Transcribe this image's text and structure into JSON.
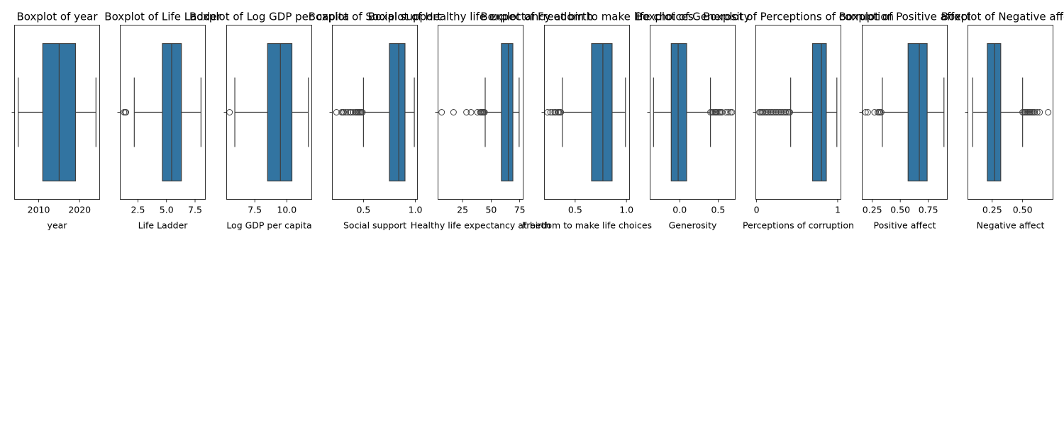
{
  "chart_data": [
    {
      "type": "box",
      "title": "Boxplot of year",
      "xlabel": "year",
      "xlim": [
        2004.1,
        2024.9
      ],
      "ticks": [
        {
          "v": 2010,
          "l": "2010"
        },
        {
          "v": 2020,
          "l": "2020"
        }
      ],
      "stats": {
        "whislo": 2005,
        "q1": 2011,
        "median": 2015,
        "q3": 2019,
        "whishi": 2024
      },
      "outliers": []
    },
    {
      "type": "box",
      "title": "Boxplot of Life Ladder",
      "xlabel": "Life Ladder",
      "xlim": [
        0.95,
        8.4
      ],
      "ticks": [
        {
          "v": 2.5,
          "l": "2.5"
        },
        {
          "v": 5,
          "l": "5.0"
        },
        {
          "v": 7.5,
          "l": "7.5"
        }
      ],
      "stats": {
        "whislo": 2.18,
        "q1": 4.64,
        "median": 5.45,
        "q3": 6.3,
        "whishi": 8.02
      },
      "outliers": [
        1.28,
        1.39,
        1.45
      ]
    },
    {
      "type": "box",
      "title": "Boxplot of Log GDP per capita",
      "xlabel": "Log GDP per capita",
      "xlim": [
        5.3,
        11.95
      ],
      "ticks": [
        {
          "v": 7.5,
          "l": "7.5"
        },
        {
          "v": 10,
          "l": "10.0"
        }
      ],
      "stats": {
        "whislo": 5.94,
        "q1": 8.5,
        "median": 9.5,
        "q3": 10.4,
        "whishi": 11.68
      },
      "outliers": [
        5.53
      ]
    },
    {
      "type": "box",
      "title": "Boxplot of Social support",
      "xlabel": "Social support",
      "xlim": [
        0.2,
        1.02
      ],
      "ticks": [
        {
          "v": 0.5,
          "l": "0.5"
        },
        {
          "v": 1,
          "l": "1.0"
        }
      ],
      "stats": {
        "whislo": 0.5,
        "q1": 0.75,
        "median": 0.84,
        "q3": 0.9,
        "whishi": 0.99
      },
      "outliers": [
        0.24,
        0.29,
        0.3,
        0.31,
        0.33,
        0.35,
        0.37,
        0.38,
        0.4,
        0.42,
        0.43,
        0.44,
        0.45,
        0.46,
        0.47,
        0.48,
        0.49
      ]
    },
    {
      "type": "box",
      "title": "Boxplot of Healthy life expectancy at birth",
      "xlabel": "Healthy life expectancy at birth",
      "xlim": [
        3.5,
        78
      ],
      "ticks": [
        {
          "v": 25,
          "l": "25"
        },
        {
          "v": 50,
          "l": "50"
        },
        {
          "v": 75,
          "l": "75"
        }
      ],
      "stats": {
        "whislo": 44.8,
        "q1": 59,
        "median": 65,
        "q3": 69,
        "whishi": 74.5
      },
      "outliers": [
        6.7,
        17.1,
        28.4,
        32.4,
        38,
        40.5,
        41.2,
        42.1,
        43,
        43.8,
        44.2
      ]
    },
    {
      "type": "box",
      "title": "Boxplot of Freedom to make life choices",
      "xlabel": "Freedom to make life choices",
      "xlim": [
        0.2,
        1.03
      ],
      "ticks": [
        {
          "v": 0.5,
          "l": "0.5"
        },
        {
          "v": 1,
          "l": "1.0"
        }
      ],
      "stats": {
        "whislo": 0.375,
        "q1": 0.66,
        "median": 0.77,
        "q3": 0.86,
        "whishi": 0.99
      },
      "outliers": [
        0.23,
        0.26,
        0.28,
        0.3,
        0.31,
        0.33,
        0.34,
        0.35,
        0.36
      ]
    },
    {
      "type": "box",
      "title": "Boxplot of Generosity",
      "xlabel": "Generosity",
      "xlim": [
        -0.385,
        0.722
      ],
      "ticks": [
        {
          "v": 0,
          "l": "0.0"
        },
        {
          "v": 0.5,
          "l": "0.5"
        }
      ],
      "stats": {
        "whislo": -0.34,
        "q1": -0.11,
        "median": -0.02,
        "q3": 0.09,
        "whishi": 0.4
      },
      "outliers": [
        0.4,
        0.42,
        0.44,
        0.46,
        0.47,
        0.48,
        0.5,
        0.52,
        0.53,
        0.55,
        0.6,
        0.63,
        0.66,
        0.68
      ]
    },
    {
      "type": "box",
      "title": "Boxplot of Perceptions of corruption",
      "xlabel": "Perceptions of corruption",
      "xlim": [
        -0.01,
        1.04
      ],
      "ticks": [
        {
          "v": 0,
          "l": "0"
        },
        {
          "v": 1,
          "l": "1"
        }
      ],
      "stats": {
        "whislo": 0.42,
        "q1": 0.69,
        "median": 0.8,
        "q3": 0.86,
        "whishi": 0.99
      },
      "outliers": [
        0.035,
        0.05,
        0.065,
        0.08,
        0.1,
        0.12,
        0.14,
        0.16,
        0.18,
        0.2,
        0.22,
        0.24,
        0.26,
        0.28,
        0.3,
        0.32,
        0.34,
        0.36,
        0.38,
        0.4,
        0.41
      ]
    },
    {
      "type": "box",
      "title": "Boxplot of Positive affect",
      "xlabel": "Positive affect",
      "xlim": [
        0.16,
        0.92
      ],
      "ticks": [
        {
          "v": 0.25,
          "l": "0.25"
        },
        {
          "v": 0.5,
          "l": "0.50"
        },
        {
          "v": 0.75,
          "l": "0.75"
        }
      ],
      "stats": {
        "whislo": 0.34,
        "q1": 0.57,
        "median": 0.67,
        "q3": 0.74,
        "whishi": 0.89
      },
      "outliers": [
        0.19,
        0.21,
        0.27,
        0.3,
        0.31,
        0.32,
        0.33
      ]
    },
    {
      "type": "box",
      "title": "Boxplot of Negative affect",
      "xlabel": "Negative affect",
      "xlim": [
        0.05,
        0.75
      ],
      "ticks": [
        {
          "v": 0.25,
          "l": "0.25"
        },
        {
          "v": 0.5,
          "l": "0.50"
        }
      ],
      "stats": {
        "whislo": 0.09,
        "q1": 0.21,
        "median": 0.27,
        "q3": 0.32,
        "whishi": 0.5
      },
      "outliers": [
        0.5,
        0.51,
        0.52,
        0.53,
        0.54,
        0.55,
        0.56,
        0.57,
        0.58,
        0.59,
        0.6,
        0.62,
        0.64,
        0.71
      ]
    }
  ],
  "colors": {
    "box_fill": "#3274a1",
    "line": "#3f3f3f",
    "spine": "#000000"
  }
}
